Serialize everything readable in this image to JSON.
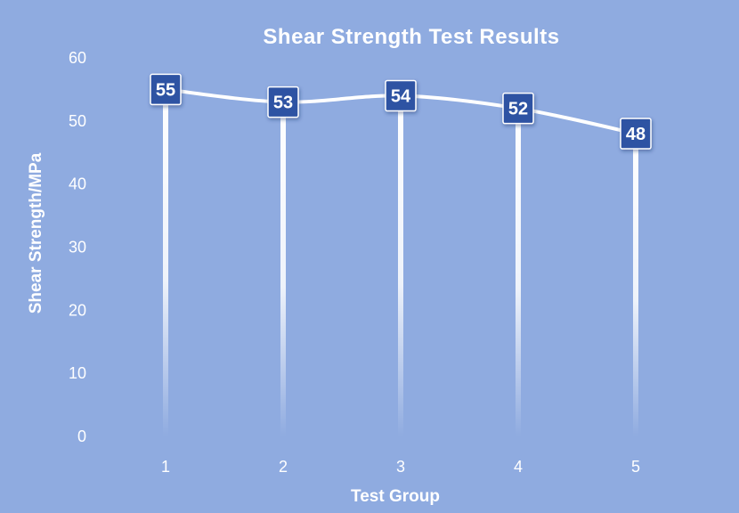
{
  "chart_data": {
    "type": "line",
    "title": "Shear Strength Test Results",
    "xlabel": "Test Group",
    "ylabel": "Shear Strength/MPa",
    "categories": [
      "1",
      "2",
      "3",
      "4",
      "5"
    ],
    "values": [
      55,
      53,
      54,
      52,
      48
    ],
    "data_labels": [
      "55",
      "53",
      "54",
      "52",
      "48"
    ],
    "ylim": [
      0,
      60
    ],
    "yticks": [
      "0",
      "10",
      "20",
      "30",
      "40",
      "50",
      "60"
    ],
    "grid": false,
    "legend": "none",
    "line_style": "smoothed",
    "drop_lines": true
  },
  "colors": {
    "background": "#8fabe0",
    "line": "#ffffff",
    "marker": "#2f52a3",
    "text": "#ffffff"
  }
}
